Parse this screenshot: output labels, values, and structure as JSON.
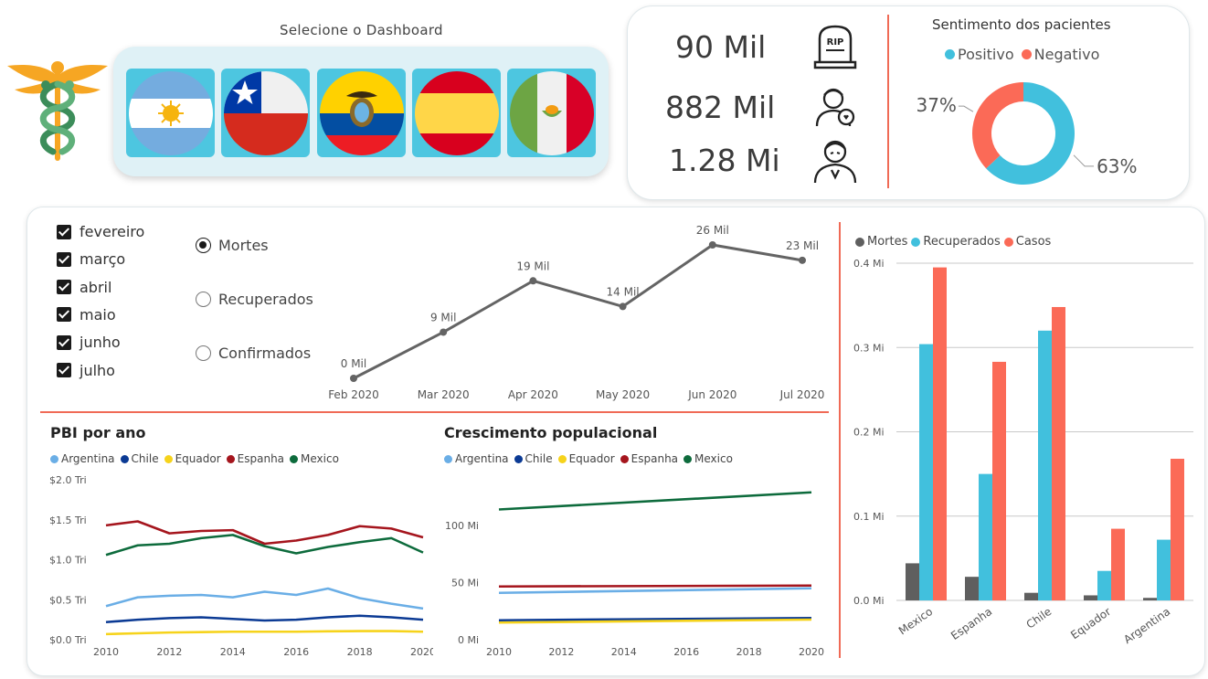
{
  "selector": {
    "title": "Selecione o Dashboard",
    "flags": [
      {
        "country": "Argentina",
        "icon": "argentina-flag-icon"
      },
      {
        "country": "Chile",
        "icon": "chile-flag-icon"
      },
      {
        "country": "Equador",
        "icon": "ecuador-flag-icon"
      },
      {
        "country": "Espanha",
        "icon": "spain-flag-icon"
      },
      {
        "country": "Mexico",
        "icon": "mexico-flag-icon"
      }
    ]
  },
  "kpis": [
    {
      "value": "90 Mil",
      "icon": "tombstone-rip-icon"
    },
    {
      "value": "882 Mil",
      "icon": "recovered-person-icon"
    },
    {
      "value": "1.28 Mi",
      "icon": "sick-person-icon"
    }
  ],
  "sentiment": {
    "title": "Sentimento dos pacientes",
    "legend": [
      {
        "label": "Positivo",
        "color": "#41c0dd"
      },
      {
        "label": "Negativo",
        "color": "#fb6a57"
      }
    ],
    "chart_data": {
      "type": "pie",
      "donut": true,
      "labels": [
        "Positivo",
        "Negativo"
      ],
      "values": [
        63,
        37
      ],
      "value_labels": [
        "63%",
        "37%"
      ]
    }
  },
  "filters": {
    "months": [
      "fevereiro",
      "março",
      "abril",
      "maio",
      "junho",
      "julho"
    ],
    "measures": [
      {
        "label": "Mortes",
        "selected": true
      },
      {
        "label": "Recuperados",
        "selected": false
      },
      {
        "label": "Confirmados",
        "selected": false
      }
    ]
  },
  "monthly_chart": {
    "chart_data": {
      "type": "line",
      "x": [
        "Feb 2020",
        "Mar 2020",
        "Apr 2020",
        "May 2020",
        "Jun 2020",
        "Jul 2020"
      ],
      "values": [
        0,
        9,
        19,
        14,
        26,
        23
      ],
      "data_labels": [
        "0 Mil",
        "9 Mil",
        "19 Mil",
        "14 Mil",
        "26 Mil",
        "23 Mil"
      ],
      "color": "#646464"
    }
  },
  "pib_chart": {
    "title": "PBI por ano",
    "legend": [
      {
        "label": "Argentina",
        "color": "#6aaee6"
      },
      {
        "label": "Chile",
        "color": "#0b3a94"
      },
      {
        "label": "Equador",
        "color": "#f6d31b"
      },
      {
        "label": "Espanha",
        "color": "#a5151d"
      },
      {
        "label": "Mexico",
        "color": "#0d6b3c"
      }
    ],
    "chart_data": {
      "type": "line",
      "x": [
        2010,
        2011,
        2012,
        2013,
        2014,
        2015,
        2016,
        2017,
        2018,
        2019,
        2020
      ],
      "x_ticks": [
        "2010",
        "2012",
        "2014",
        "2016",
        "2018",
        "2020"
      ],
      "y_ticks": [
        "$0.0 Tri",
        "$0.5 Tri",
        "$1.0 Tri",
        "$1.5 Tri",
        "$2.0 Tri"
      ],
      "ylim": [
        0,
        2.0
      ],
      "series": [
        {
          "name": "Argentina",
          "values": [
            0.42,
            0.53,
            0.55,
            0.56,
            0.53,
            0.6,
            0.56,
            0.64,
            0.52,
            0.45,
            0.39
          ]
        },
        {
          "name": "Chile",
          "values": [
            0.22,
            0.25,
            0.27,
            0.28,
            0.26,
            0.24,
            0.25,
            0.28,
            0.3,
            0.28,
            0.25
          ]
        },
        {
          "name": "Equador",
          "values": [
            0.07,
            0.08,
            0.09,
            0.095,
            0.1,
            0.1,
            0.1,
            0.105,
            0.108,
            0.108,
            0.1
          ]
        },
        {
          "name": "Espanha",
          "values": [
            1.43,
            1.48,
            1.33,
            1.36,
            1.37,
            1.2,
            1.24,
            1.31,
            1.42,
            1.39,
            1.28
          ]
        },
        {
          "name": "Mexico",
          "values": [
            1.06,
            1.18,
            1.2,
            1.27,
            1.31,
            1.17,
            1.08,
            1.16,
            1.22,
            1.27,
            1.09
          ]
        }
      ]
    }
  },
  "pop_chart": {
    "title": "Crescimento populacional",
    "legend": [
      {
        "label": "Argentina",
        "color": "#6aaee6"
      },
      {
        "label": "Chile",
        "color": "#0b3a94"
      },
      {
        "label": "Equador",
        "color": "#f6d31b"
      },
      {
        "label": "Espanha",
        "color": "#a5151d"
      },
      {
        "label": "Mexico",
        "color": "#0d6b3c"
      }
    ],
    "chart_data": {
      "type": "line",
      "x": [
        2010,
        2020
      ],
      "x_ticks": [
        "2010",
        "2012",
        "2014",
        "2016",
        "2018",
        "2020"
      ],
      "y_ticks": [
        "0 Mi",
        "50 Mi",
        "100 Mi"
      ],
      "ylim": [
        0,
        140
      ],
      "series": [
        {
          "name": "Argentina",
          "values": [
            41,
            45
          ]
        },
        {
          "name": "Chile",
          "values": [
            17,
            19
          ]
        },
        {
          "name": "Equador",
          "values": [
            15,
            17.6
          ]
        },
        {
          "name": "Espanha",
          "values": [
            46.6,
            47.4
          ]
        },
        {
          "name": "Mexico",
          "values": [
            114,
            129
          ]
        }
      ]
    }
  },
  "country_bars": {
    "legend": [
      {
        "label": "Mortes",
        "color": "#5f5f5f"
      },
      {
        "label": "Recuperados",
        "color": "#41c0dd"
      },
      {
        "label": "Casos",
        "color": "#fb6a57"
      }
    ],
    "chart_data": {
      "type": "bar",
      "categories": [
        "Mexico",
        "Espanha",
        "Chile",
        "Equador",
        "Argentina"
      ],
      "y_ticks": [
        "0.0 Mi",
        "0.1 Mi",
        "0.2 Mi",
        "0.3 Mi",
        "0.4 Mi"
      ],
      "ylim": [
        0,
        0.4
      ],
      "series": [
        {
          "name": "Mortes",
          "values": [
            0.044,
            0.028,
            0.009,
            0.006,
            0.003
          ]
        },
        {
          "name": "Recuperados",
          "values": [
            0.304,
            0.15,
            0.32,
            0.035,
            0.072
          ]
        },
        {
          "name": "Casos",
          "values": [
            0.395,
            0.283,
            0.348,
            0.085,
            0.168
          ]
        }
      ]
    }
  }
}
